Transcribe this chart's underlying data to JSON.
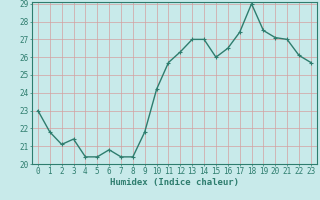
{
  "x": [
    0,
    1,
    2,
    3,
    4,
    5,
    6,
    7,
    8,
    9,
    10,
    11,
    12,
    13,
    14,
    15,
    16,
    17,
    18,
    19,
    20,
    21,
    22,
    23
  ],
  "y": [
    23.0,
    21.8,
    21.1,
    21.4,
    20.4,
    20.4,
    20.8,
    20.4,
    20.4,
    21.8,
    24.2,
    25.7,
    26.3,
    27.0,
    27.0,
    26.0,
    26.5,
    27.4,
    29.0,
    27.5,
    27.1,
    27.0,
    26.1,
    25.7
  ],
  "line_color": "#2e7d6e",
  "marker": "+",
  "marker_size": 3,
  "marker_lw": 0.8,
  "bg_color": "#c8eaea",
  "grid_color": "#d4a0a0",
  "xlabel": "Humidex (Indice chaleur)",
  "ylim": [
    20,
    29
  ],
  "xlim": [
    -0.5,
    23.5
  ],
  "yticks": [
    20,
    21,
    22,
    23,
    24,
    25,
    26,
    27,
    28,
    29
  ],
  "xticks": [
    0,
    1,
    2,
    3,
    4,
    5,
    6,
    7,
    8,
    9,
    10,
    11,
    12,
    13,
    14,
    15,
    16,
    17,
    18,
    19,
    20,
    21,
    22,
    23
  ],
  "font_size_label": 6.5,
  "font_size_tick": 5.5,
  "line_width": 1.0,
  "spine_color": "#2e7d6e"
}
